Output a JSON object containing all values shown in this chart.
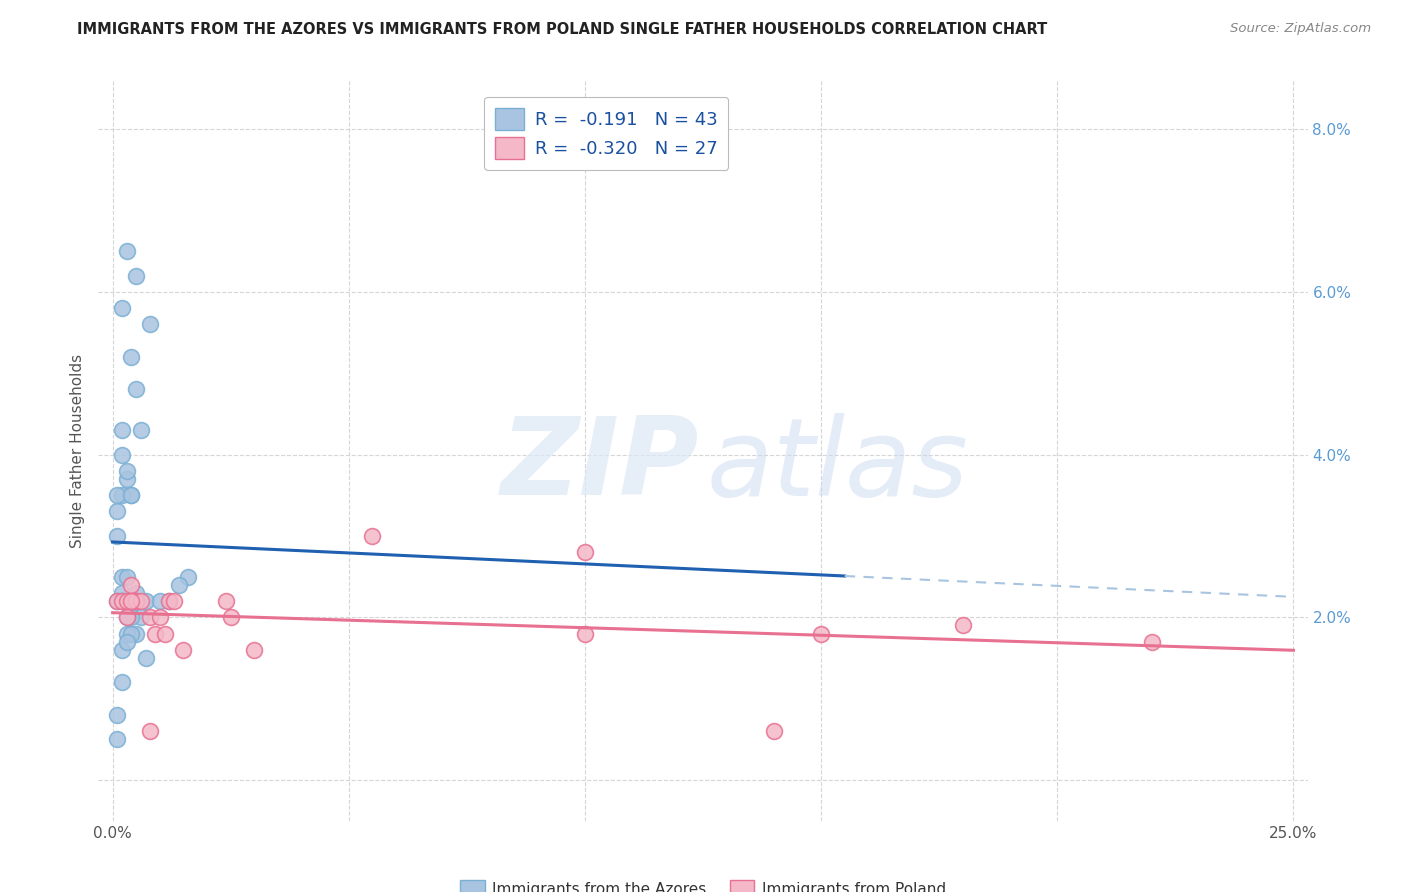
{
  "title": "IMMIGRANTS FROM THE AZORES VS IMMIGRANTS FROM POLAND SINGLE FATHER HOUSEHOLDS CORRELATION CHART",
  "source": "Source: ZipAtlas.com",
  "ylabel": "Single Father Households",
  "legend_line1": "R =  -0.191   N = 43",
  "legend_line2": "R =  -0.320   N = 27",
  "bottom_label1": "Immigrants from the Azores",
  "bottom_label2": "Immigrants from Poland",
  "azores_x": [
    0.001,
    0.003,
    0.005,
    0.002,
    0.004,
    0.005,
    0.002,
    0.002,
    0.003,
    0.004,
    0.006,
    0.008,
    0.003,
    0.002,
    0.001,
    0.001,
    0.002,
    0.003,
    0.004,
    0.003,
    0.002,
    0.001,
    0.002,
    0.005,
    0.007,
    0.005,
    0.012,
    0.016,
    0.01,
    0.005,
    0.007,
    0.014,
    0.006,
    0.003,
    0.002,
    0.001,
    0.004,
    0.002,
    0.004,
    0.003,
    0.002,
    0.001,
    0.003
  ],
  "azores_y": [
    0.033,
    0.065,
    0.062,
    0.058,
    0.052,
    0.048,
    0.043,
    0.04,
    0.037,
    0.035,
    0.043,
    0.056,
    0.038,
    0.035,
    0.035,
    0.03,
    0.025,
    0.025,
    0.035,
    0.022,
    0.023,
    0.022,
    0.022,
    0.022,
    0.022,
    0.023,
    0.022,
    0.025,
    0.022,
    0.018,
    0.015,
    0.024,
    0.02,
    0.018,
    0.022,
    0.008,
    0.018,
    0.016,
    0.02,
    0.02,
    0.012,
    0.005,
    0.017
  ],
  "poland_x": [
    0.001,
    0.002,
    0.003,
    0.004,
    0.005,
    0.005,
    0.006,
    0.008,
    0.009,
    0.01,
    0.011,
    0.012,
    0.013,
    0.015,
    0.024,
    0.025,
    0.03,
    0.055,
    0.1,
    0.1,
    0.15,
    0.14,
    0.18,
    0.22,
    0.003,
    0.004,
    0.008
  ],
  "poland_y": [
    0.022,
    0.022,
    0.022,
    0.024,
    0.022,
    0.022,
    0.022,
    0.02,
    0.018,
    0.02,
    0.018,
    0.022,
    0.022,
    0.016,
    0.022,
    0.02,
    0.016,
    0.03,
    0.028,
    0.018,
    0.018,
    0.006,
    0.019,
    0.017,
    0.02,
    0.022,
    0.006
  ],
  "xlim": [
    -0.003,
    0.253
  ],
  "ylim": [
    -0.005,
    0.086
  ],
  "xticks": [
    0.0,
    0.05,
    0.1,
    0.15,
    0.2,
    0.25
  ],
  "xticklabels": [
    "0.0%",
    "",
    "",
    "",
    "",
    "25.0%"
  ],
  "yticks": [
    0.0,
    0.02,
    0.04,
    0.06,
    0.08
  ],
  "yticklabels_right": [
    "",
    "2.0%",
    "4.0%",
    "6.0%",
    "8.0%"
  ],
  "blue_scatter": "#a8c4e0",
  "blue_edge": "#7aafd4",
  "pink_scatter": "#f4b8c8",
  "pink_edge": "#e87090",
  "blue_line": "#2060b0",
  "pink_line": "#e87090",
  "dashed_line": "#a8c4e0",
  "right_tick_color": "#5b9bd5",
  "grid_color": "#cccccc",
  "title_color": "#222222",
  "source_color": "#888888",
  "ylabel_color": "#555555",
  "tick_label_color": "#555555"
}
